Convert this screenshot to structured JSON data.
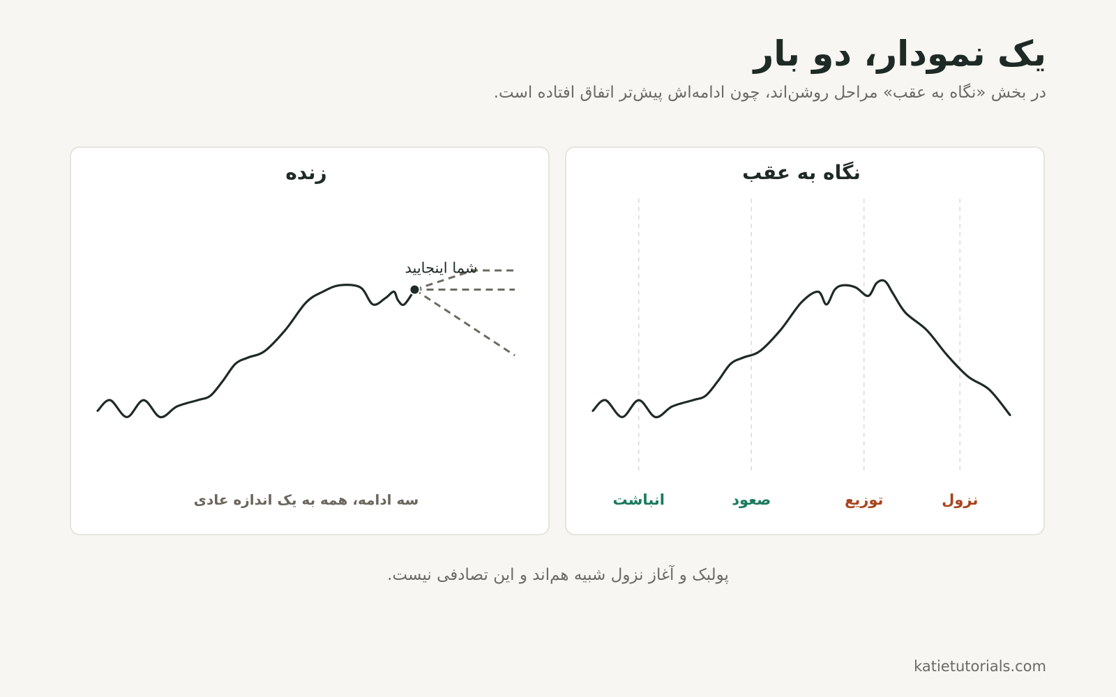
{
  "header": {
    "title": "یک نمودار، دو بار",
    "subtitle": "در بخش «نگاه به عقب» مراحل روشن‌اند، چون ادامه‌اش پیش‌تر اتفاق افتاده است."
  },
  "footer": {
    "note": "پولبک و آغاز نزول شبیه هم‌اند و این تصادفی نیست.",
    "credit": "katietutorials.com"
  },
  "colors": {
    "line": "#1e2a26",
    "projection": "#6b6b60",
    "phase_up": "#1a7a5e",
    "phase_down": "#a8441e"
  },
  "chart_data": [
    {
      "type": "line",
      "title": "زنده",
      "xlim": [
        0,
        100
      ],
      "ylim": [
        0,
        100
      ],
      "series": [
        {
          "x": [
            0,
            3,
            7,
            11,
            15,
            19,
            24,
            27,
            30,
            33,
            36,
            40,
            45,
            50,
            54,
            58,
            63,
            66,
            69,
            71,
            72,
            73.5,
            76
          ],
          "y": [
            14,
            19,
            11,
            19,
            11,
            16,
            19,
            21,
            28,
            36,
            39,
            42,
            52,
            65,
            70,
            73,
            72,
            64,
            67,
            70,
            66,
            64,
            71
          ]
        }
      ],
      "marker": {
        "x": 76,
        "y": 71,
        "label": "شما اینجایید"
      },
      "projections": [
        {
          "x": [
            76,
            90,
            100
          ],
          "y": [
            71,
            80,
            80
          ]
        },
        {
          "x": [
            76,
            100
          ],
          "y": [
            71,
            71
          ]
        },
        {
          "x": [
            76,
            100
          ],
          "y": [
            71,
            40
          ]
        }
      ],
      "note": "سه ادامه، همه به یک اندازه عادی"
    },
    {
      "type": "line",
      "title": "نگاه به عقب",
      "xlim": [
        0,
        100
      ],
      "ylim": [
        0,
        100
      ],
      "series": [
        {
          "x": [
            0,
            3,
            7,
            11,
            15,
            19,
            24,
            27,
            30,
            33,
            36,
            40,
            45,
            50,
            54,
            56,
            58,
            60,
            63,
            66,
            68,
            70,
            72,
            75,
            80,
            85,
            90,
            95,
            100
          ],
          "y": [
            14,
            19,
            11,
            19,
            11,
            16,
            19,
            21,
            28,
            36,
            39,
            42,
            52,
            65,
            70,
            64,
            71,
            73,
            72,
            68,
            74,
            75,
            69,
            60,
            52,
            40,
            30,
            24,
            12
          ]
        }
      ],
      "phases": [
        {
          "label": "انباشت",
          "x": 11,
          "color": "#1a7a5e"
        },
        {
          "label": "صعود",
          "x": 38,
          "color": "#1a7a5e"
        },
        {
          "label": "توزیع",
          "x": 65,
          "color": "#a8441e"
        },
        {
          "label": "نزول",
          "x": 88,
          "color": "#a8441e"
        }
      ]
    }
  ]
}
